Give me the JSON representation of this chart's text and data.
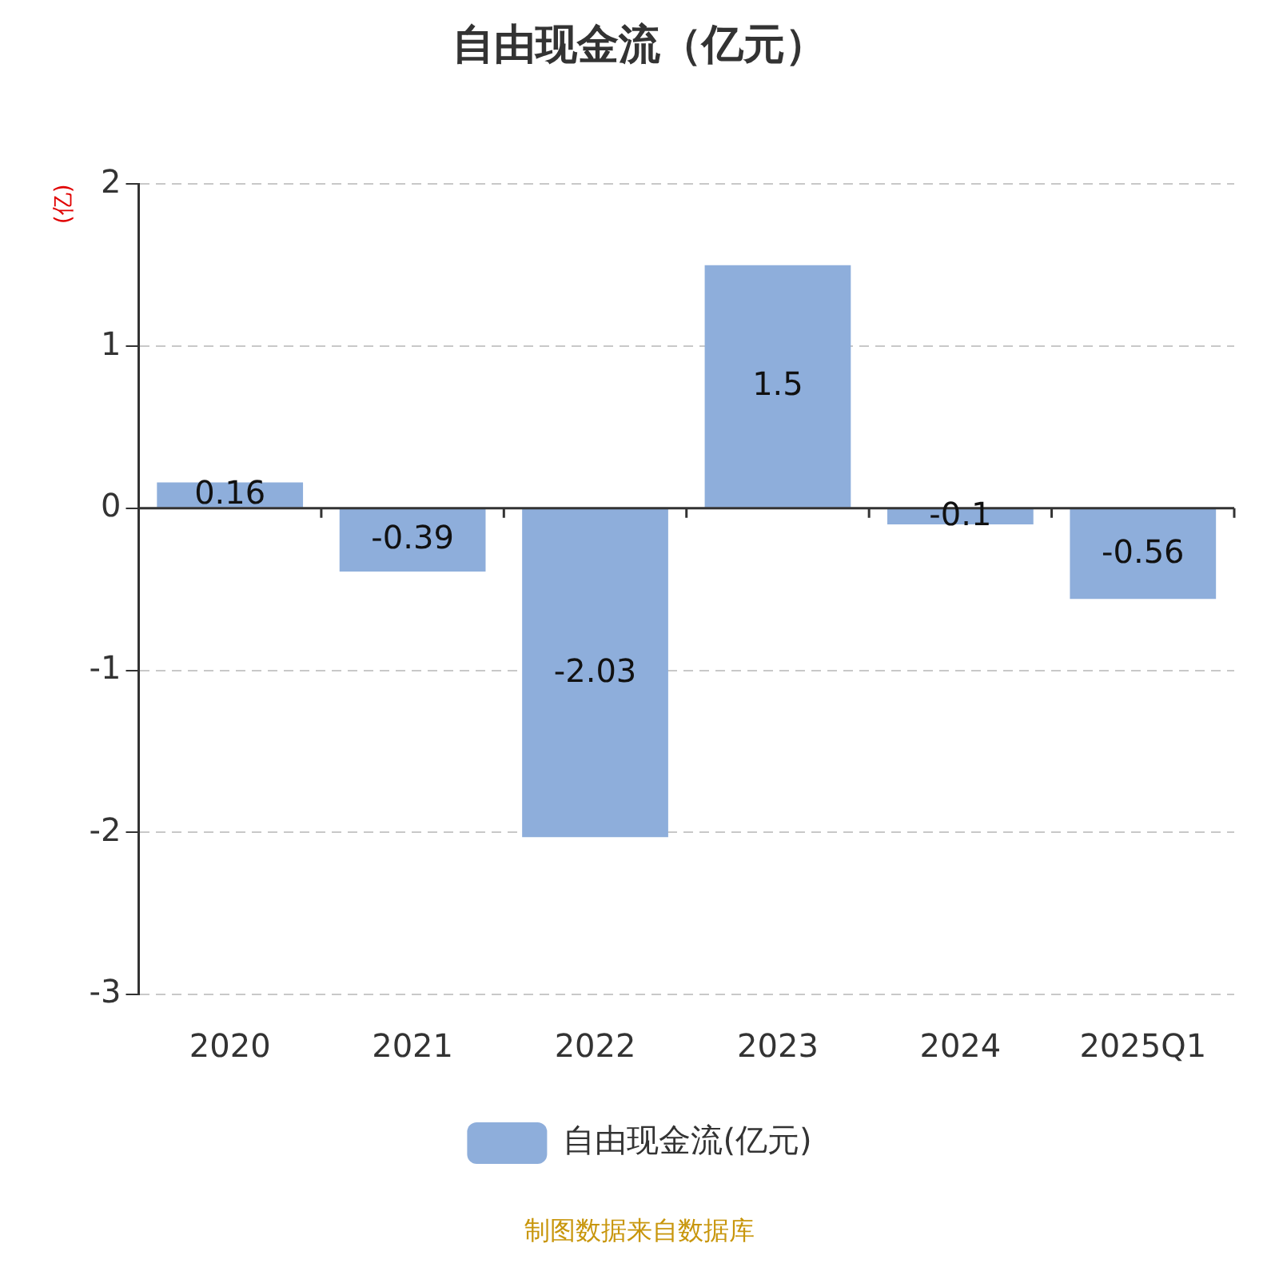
{
  "chart_data": {
    "type": "bar",
    "title": "自由现金流（亿元）",
    "ylabel": "(亿)",
    "categories": [
      "2020",
      "2021",
      "2022",
      "2023",
      "2024",
      "2025Q1"
    ],
    "series": [
      {
        "name": "自由现金流(亿元)",
        "color": "#8eaedb",
        "values": [
          0.16,
          -0.39,
          -2.03,
          1.5,
          -0.1,
          -0.56
        ]
      }
    ],
    "ylim": [
      -3,
      2
    ],
    "yticks": [
      -3,
      -2,
      -1,
      0,
      1,
      2
    ],
    "grid": "y",
    "legend": "bottom",
    "data_labels": true,
    "annotations": [
      "制图数据来自数据库"
    ]
  }
}
